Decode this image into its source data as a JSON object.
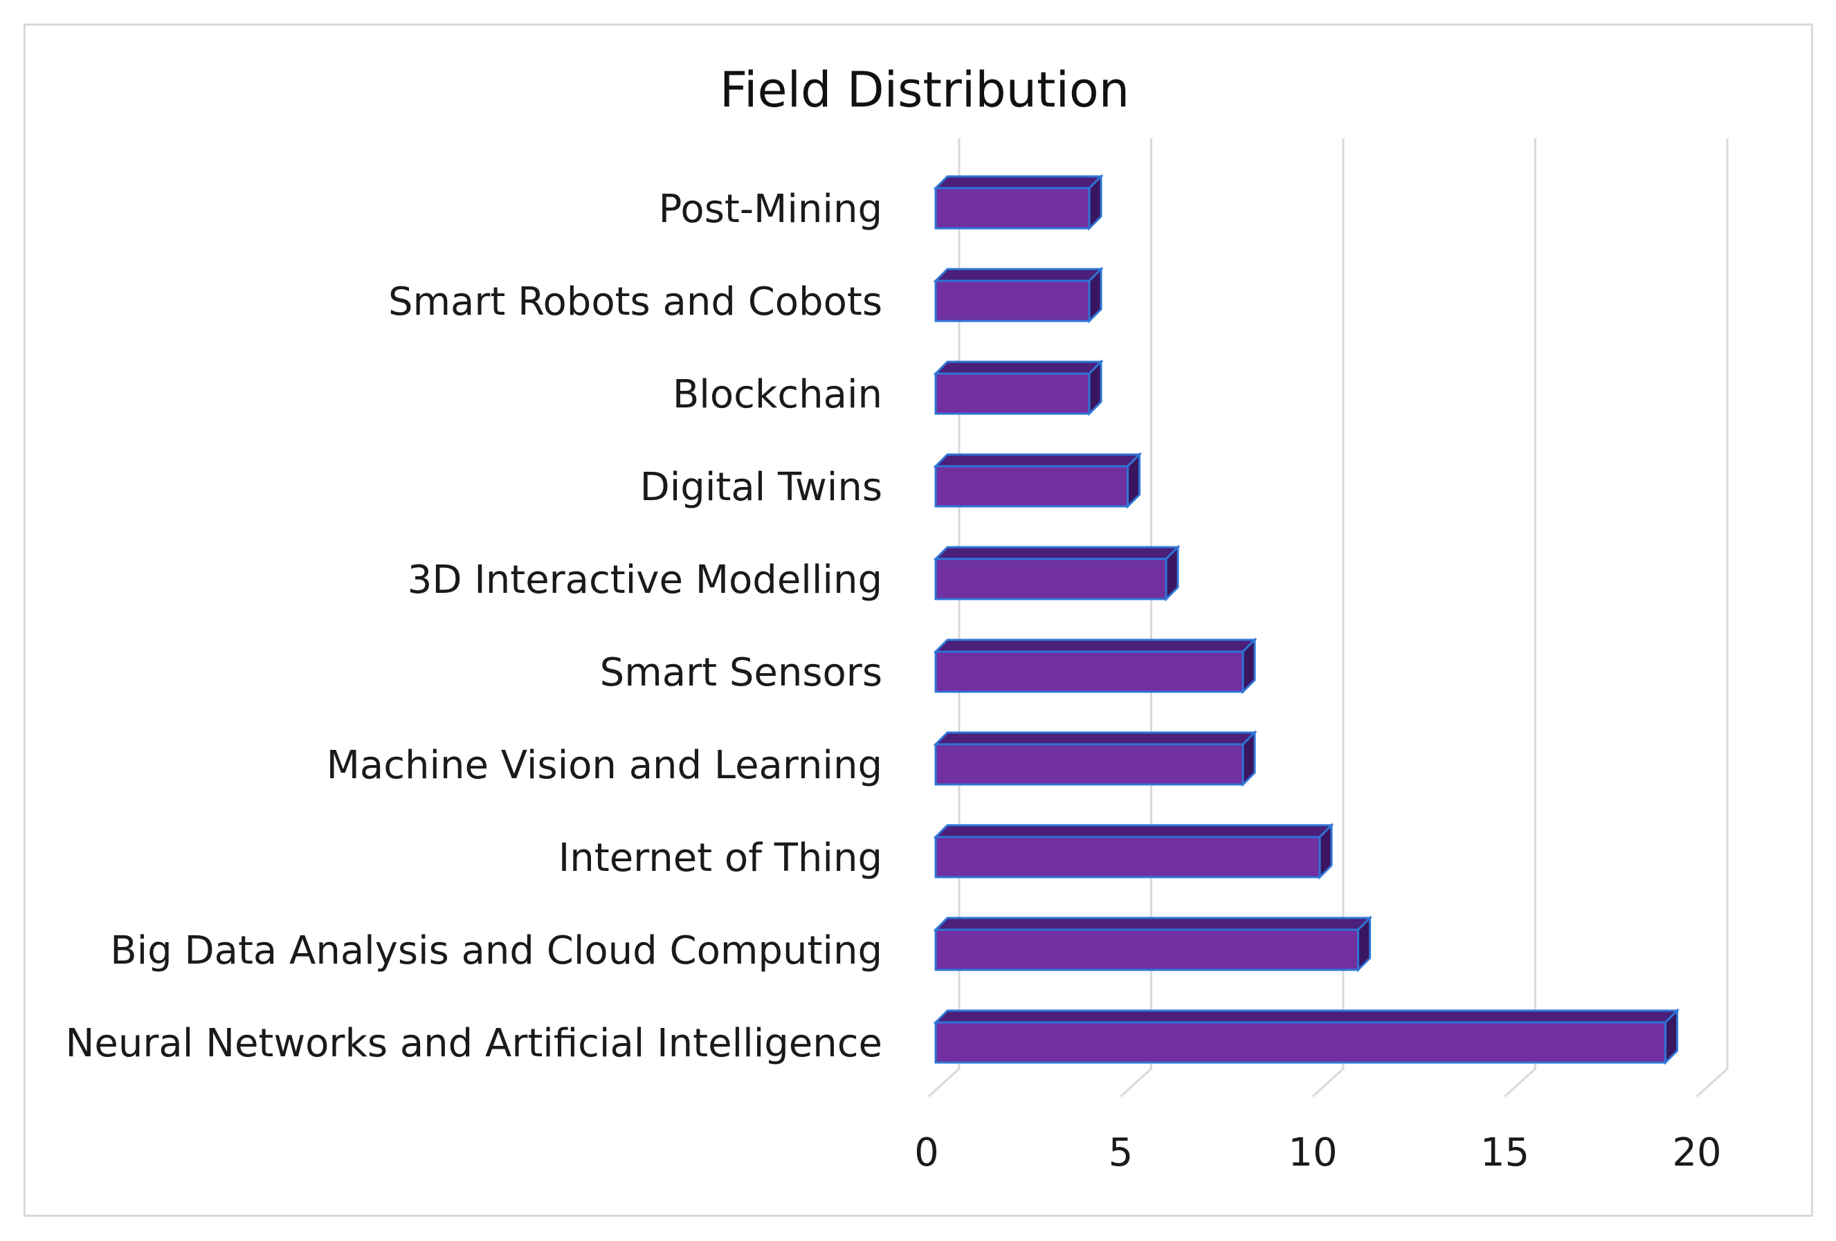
{
  "chart_data": {
    "type": "bar",
    "orientation": "horizontal",
    "style": "3d",
    "title": "Field Distribution",
    "xlabel": "",
    "ylabel": "",
    "categories": [
      "Neural Networks and Artificial Intelligence",
      "Big Data Analysis and Cloud Computing",
      "Internet of Thing",
      "Machine Vision and Learning",
      "Smart Sensors",
      "3D Interactive Modelling",
      "Digital Twins",
      "Blockchain",
      "Smart Robots and Cobots",
      "Post-Mining"
    ],
    "values": [
      19,
      11,
      10,
      8,
      8,
      6,
      5,
      4,
      4,
      4
    ],
    "xlim": [
      0,
      20
    ],
    "xticks": [
      0,
      5,
      10,
      15,
      20
    ],
    "grid": true,
    "legend": "none",
    "colors": {
      "bar_face": "#7030a0",
      "bar_top": "#4b1f7a",
      "bar_side": "#3a1660",
      "bar_edge": "#2e75d6",
      "grid": "#d9d9d9",
      "frame": "#d9d9d9"
    }
  }
}
